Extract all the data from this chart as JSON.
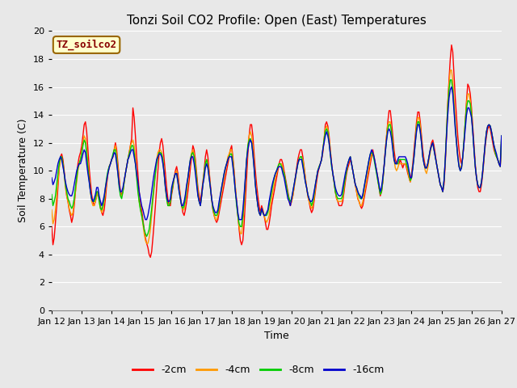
{
  "title": "Tonzi Soil CO2 Profile: Open (East) Temperatures",
  "xlabel": "Time",
  "ylabel": "Soil Temperature (C)",
  "ylim": [
    0,
    20
  ],
  "yticks": [
    0,
    2,
    4,
    6,
    8,
    10,
    12,
    14,
    16,
    18,
    20
  ],
  "xlim": [
    0,
    360
  ],
  "bg_color": "#e8e8e8",
  "grid_color": "#ffffff",
  "annotation_text": "TZ_soilco2",
  "annotation_bg": "#ffffcc",
  "annotation_border": "#996600",
  "annotation_color": "#880000",
  "colors": [
    "#ff0000",
    "#ff9900",
    "#00cc00",
    "#0000cc"
  ],
  "labels": [
    "-2cm",
    "-4cm",
    "-8cm",
    "-16cm"
  ],
  "xtick_labels": [
    "Jan 12",
    "Jan 13",
    "Jan 14",
    "Jan 15",
    "Jan 16",
    "Jan 17",
    "Jan 18",
    "Jan 19",
    "Jan 20",
    "Jan 21",
    "Jan 22",
    "Jan 23",
    "Jan 24",
    "Jan 25",
    "Jan 26",
    "Jan 27"
  ],
  "xtick_positions": [
    0,
    24,
    48,
    72,
    96,
    120,
    144,
    168,
    192,
    216,
    240,
    264,
    288,
    312,
    336,
    360
  ],
  "title_fontsize": 11,
  "axis_fontsize": 9,
  "tick_fontsize": 8,
  "legend_fontsize": 9,
  "linewidth": 1.0
}
